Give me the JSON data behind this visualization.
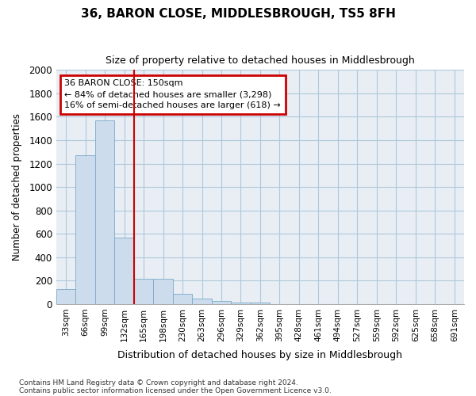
{
  "title": "36, BARON CLOSE, MIDDLESBROUGH, TS5 8FH",
  "subtitle": "Size of property relative to detached houses in Middlesbrough",
  "xlabel": "Distribution of detached houses by size in Middlesbrough",
  "ylabel": "Number of detached properties",
  "footnote1": "Contains HM Land Registry data © Crown copyright and database right 2024.",
  "footnote2": "Contains public sector information licensed under the Open Government Licence v3.0.",
  "annotation_line1": "36 BARON CLOSE: 150sqm",
  "annotation_line2": "← 84% of detached houses are smaller (3,298)",
  "annotation_line3": "16% of semi-detached houses are larger (618) →",
  "bar_color": "#ccdcec",
  "bar_edge_color": "#7aaac8",
  "vline_color": "#cc0000",
  "annotation_box_edge": "#cc0000",
  "categories": [
    "33sqm",
    "66sqm",
    "99sqm",
    "132sqm",
    "165sqm",
    "198sqm",
    "230sqm",
    "263sqm",
    "296sqm",
    "329sqm",
    "362sqm",
    "395sqm",
    "428sqm",
    "461sqm",
    "494sqm",
    "527sqm",
    "559sqm",
    "592sqm",
    "625sqm",
    "658sqm",
    "691sqm"
  ],
  "values": [
    130,
    1270,
    1570,
    570,
    215,
    215,
    90,
    50,
    28,
    15,
    15,
    0,
    0,
    0,
    0,
    0,
    0,
    0,
    0,
    0,
    0
  ],
  "ylim": [
    0,
    2000
  ],
  "yticks": [
    0,
    200,
    400,
    600,
    800,
    1000,
    1200,
    1400,
    1600,
    1800,
    2000
  ],
  "vline_x_index": 3.5,
  "grid_color": "#aec8dc",
  "bg_color": "#e8eef4"
}
